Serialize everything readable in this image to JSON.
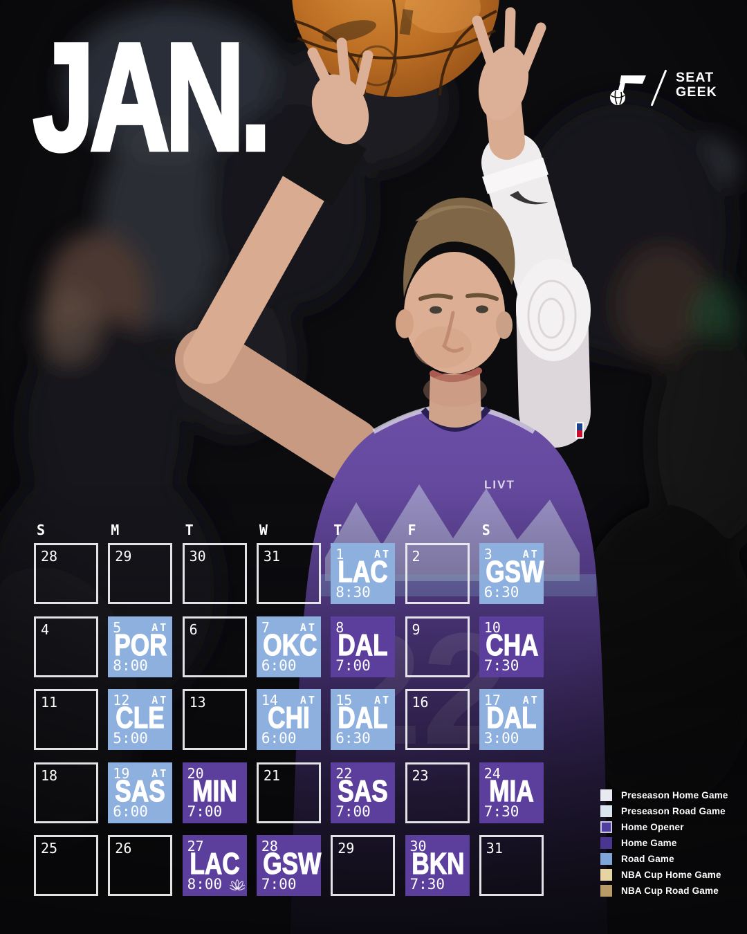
{
  "title": "JAN.",
  "brand": {
    "team_logo": "utah-jazz-note-logo",
    "seatgeek_line1": "SEAT",
    "seatgeek_line2": "GEEK"
  },
  "photo": {
    "jersey_number": "22",
    "jersey_sponsor_text": "LIVT"
  },
  "colors": {
    "road_cell": "#8db0de",
    "home_cell": "#5c3e9d",
    "cell_text": "#ffffff",
    "empty_border": "#eeeef1"
  },
  "calendar": {
    "away_label": "AT",
    "day_headers": [
      "S",
      "M",
      "T",
      "W",
      "T",
      "F",
      "S"
    ],
    "weeks": [
      [
        {
          "day": "28"
        },
        {
          "day": "29"
        },
        {
          "day": "30"
        },
        {
          "day": "31"
        },
        {
          "day": "1",
          "opponent": "LAC",
          "time": "8:30",
          "away": true,
          "type": "road"
        },
        {
          "day": "2"
        },
        {
          "day": "3",
          "opponent": "GSW",
          "time": "6:30",
          "away": true,
          "type": "road"
        }
      ],
      [
        {
          "day": "4"
        },
        {
          "day": "5",
          "opponent": "POR",
          "time": "8:00",
          "away": true,
          "type": "road"
        },
        {
          "day": "6"
        },
        {
          "day": "7",
          "opponent": "OKC",
          "time": "6:00",
          "away": true,
          "type": "road"
        },
        {
          "day": "8",
          "opponent": "DAL",
          "time": "7:00",
          "away": false,
          "type": "home"
        },
        {
          "day": "9"
        },
        {
          "day": "10",
          "opponent": "CHA",
          "time": "7:30",
          "away": false,
          "type": "home"
        }
      ],
      [
        {
          "day": "11"
        },
        {
          "day": "12",
          "opponent": "CLE",
          "time": "5:00",
          "away": true,
          "type": "road"
        },
        {
          "day": "13"
        },
        {
          "day": "14",
          "opponent": "CHI",
          "time": "6:00",
          "away": true,
          "type": "road"
        },
        {
          "day": "15",
          "opponent": "DAL",
          "time": "6:30",
          "away": true,
          "type": "road"
        },
        {
          "day": "16"
        },
        {
          "day": "17",
          "opponent": "DAL",
          "time": "3:00",
          "away": true,
          "type": "road"
        }
      ],
      [
        {
          "day": "18"
        },
        {
          "day": "19",
          "opponent": "SAS",
          "time": "6:00",
          "away": true,
          "type": "road"
        },
        {
          "day": "20",
          "opponent": "MIN",
          "time": "7:00",
          "away": false,
          "type": "home"
        },
        {
          "day": "21"
        },
        {
          "day": "22",
          "opponent": "SAS",
          "time": "7:00",
          "away": false,
          "type": "home"
        },
        {
          "day": "23"
        },
        {
          "day": "24",
          "opponent": "MIA",
          "time": "7:30",
          "away": false,
          "type": "home"
        }
      ],
      [
        {
          "day": "25"
        },
        {
          "day": "26"
        },
        {
          "day": "27",
          "opponent": "LAC",
          "time": "8:00",
          "away": false,
          "type": "home",
          "tv_icon": "nbc-peacock"
        },
        {
          "day": "28",
          "opponent": "GSW",
          "time": "7:00",
          "away": false,
          "type": "home"
        },
        {
          "day": "29"
        },
        {
          "day": "30",
          "opponent": "BKN",
          "time": "7:30",
          "away": false,
          "type": "home"
        },
        {
          "day": "31"
        }
      ]
    ]
  },
  "legend": {
    "items": [
      {
        "label": "Preseason Home Game",
        "color": "#e9e9f2"
      },
      {
        "label": "Preseason Road Game",
        "color": "#d8e5f0"
      },
      {
        "label": "Home Opener",
        "color": "#4f3da0",
        "border": "#c9c4e2"
      },
      {
        "label": "Home Game",
        "color": "#4a3590"
      },
      {
        "label": "Road Game",
        "color": "#7fa6d9"
      },
      {
        "label": "NBA Cup Home Game",
        "color": "#e6d4a3"
      },
      {
        "label": "NBA Cup Road Game",
        "color": "#b89b66"
      }
    ]
  }
}
